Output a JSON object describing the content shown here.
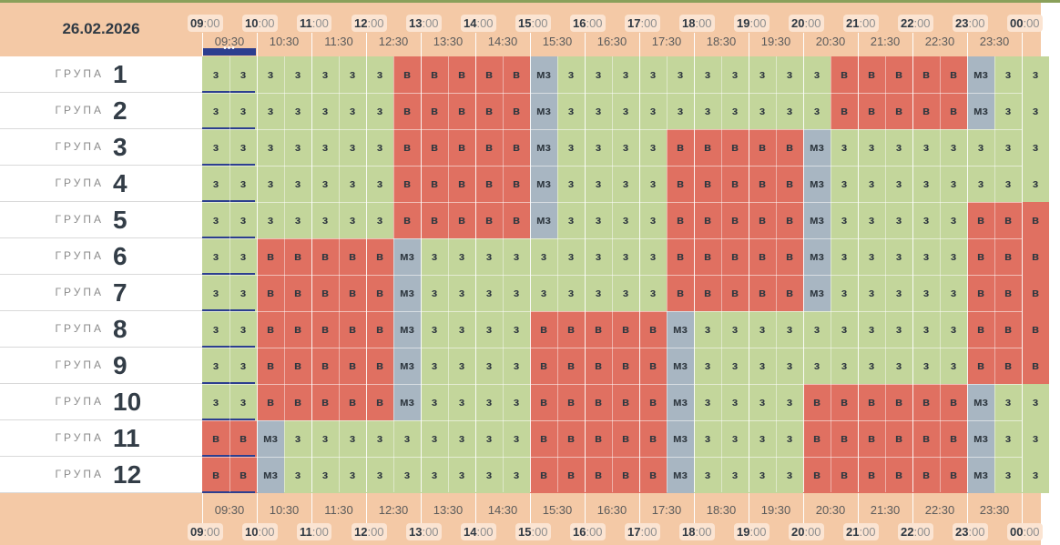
{
  "date": "26.02.2026",
  "hours": [
    "09",
    "10",
    "11",
    "12",
    "13",
    "14",
    "15",
    "16",
    "17",
    "18",
    "19",
    "20",
    "21",
    "22",
    "23",
    "00"
  ],
  "minute_suffix": ":00",
  "half_hours": [
    "09:30",
    "10:30",
    "11:30",
    "12:30",
    "13:30",
    "14:30",
    "15:30",
    "16:30",
    "17:30",
    "18:30",
    "19:30",
    "20:30",
    "21:30",
    "22:30",
    "23:30"
  ],
  "now_indicator": "•••",
  "group_word": "ГРУПА",
  "status_codes": {
    "z": "з",
    "v": "в",
    "m": "мз"
  },
  "colors": {
    "z": "#c3d69b",
    "v": "#e07061",
    "m": "#a8b6c2",
    "header_bg": "#f4c9a6",
    "now_marker": "#2c3e8f"
  },
  "groups": [
    {
      "number": "1",
      "cells": "zzzzzzzvvvvvmzzzzzzzzzzvvvvvmzz"
    },
    {
      "number": "2",
      "cells": "zzzzzzzvvvvvmzzzzzzzzzzvvvvvmzz"
    },
    {
      "number": "3",
      "cells": "zzzzzzzvvvvvmzzzzvvvvvmzzzzzzzz"
    },
    {
      "number": "4",
      "cells": "zzzzzzzvvvvvmzzzzvvvvvmzzzzzzzz"
    },
    {
      "number": "5",
      "cells": "zzzzzzzvvvvvmzzzzvvvvvmzzzzzvvv"
    },
    {
      "number": "6",
      "cells": "zzvvvvvmzzzzzzzzzvvvvvmzzzzzvvv"
    },
    {
      "number": "7",
      "cells": "zzvvvvvmzzzzzzzzzvvvvvmzzzzzvvv"
    },
    {
      "number": "8",
      "cells": "zzvvvvvmzzzzvvvvvmzzzzzzzzzzvvv"
    },
    {
      "number": "9",
      "cells": "zzvvvvvmzzzzvvvvvmzzzzzzzzzzvvv"
    },
    {
      "number": "10",
      "cells": "zzvvvvvmzzzzvvvvvmzzzzvvvvvvmzz"
    },
    {
      "number": "11",
      "cells": "vvmzzzzzzzzzvvvvvmzzzzvvvvvvmzz"
    },
    {
      "number": "12",
      "cells": "vvmzzzzzzzzzvvvvvmzzzzvvvvvvmzz"
    }
  ]
}
